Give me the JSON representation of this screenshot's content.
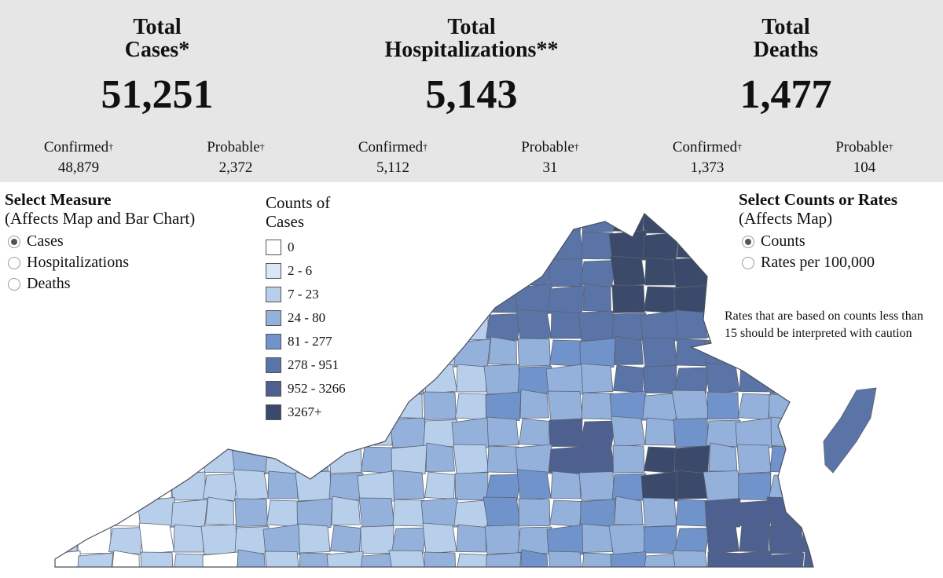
{
  "summary": [
    {
      "title_line1": "Total",
      "title_line2": "Cases*",
      "total": "51,251",
      "confirmed_label": "Confirmed",
      "confirmed_value": "48,879",
      "probable_label": "Probable",
      "probable_value": "2,372"
    },
    {
      "title_line1": "Total",
      "title_line2": "Hospitalizations**",
      "total": "5,143",
      "confirmed_label": "Confirmed",
      "confirmed_value": "5,112",
      "probable_label": "Probable",
      "probable_value": "31"
    },
    {
      "title_line1": "Total",
      "title_line2": "Deaths",
      "total": "1,477",
      "confirmed_label": "Confirmed",
      "confirmed_value": "1,373",
      "probable_label": "Probable",
      "probable_value": "104"
    }
  ],
  "dagger": "†",
  "measure": {
    "title": "Select Measure",
    "subtitle": "(Affects Map and Bar Chart)",
    "options": [
      "Cases",
      "Hospitalizations",
      "Deaths"
    ],
    "selected": "Cases"
  },
  "legend": {
    "title_line1": "Counts of",
    "title_line2": "Cases",
    "items": [
      {
        "label": "0",
        "color": "#ffffff"
      },
      {
        "label": "2 - 6",
        "color": "#d9e6f5"
      },
      {
        "label": "7 - 23",
        "color": "#b8cfeb"
      },
      {
        "label": "24 - 80",
        "color": "#94b1dc"
      },
      {
        "label": "81 - 277",
        "color": "#7093cb"
      },
      {
        "label": "278 - 951",
        "color": "#5a74a8"
      },
      {
        "label": "952 - 3266",
        "color": "#4d6090"
      },
      {
        "label": "3267+",
        "color": "#3b4a6b"
      }
    ]
  },
  "rates": {
    "title": "Select Counts or Rates",
    "subtitle": "(Affects Map)",
    "options": [
      "Counts",
      "Rates per 100,000"
    ],
    "selected": "Counts"
  },
  "note": "Rates that are based on counts less than 15 should be interpreted with caution"
}
